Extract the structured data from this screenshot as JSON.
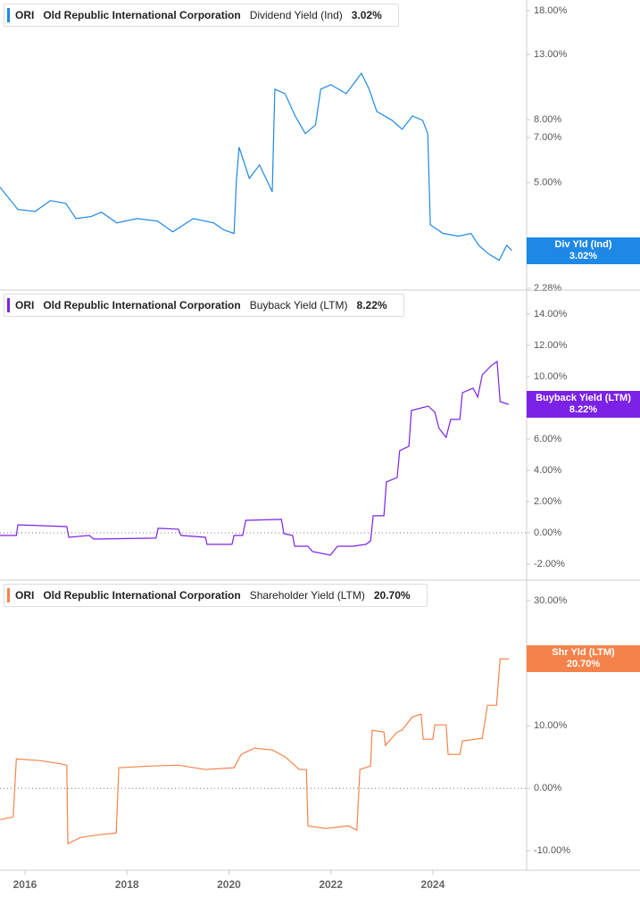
{
  "chart_data": [
    {
      "type": "line",
      "ticker": "ORI",
      "company": "Old Republic International Corporation",
      "current": "3.02%",
      "badge": "Div Yld (Ind)",
      "log": true,
      "zero_line": false,
      "xlim": [
        2015.51,
        2025.84
      ],
      "ylim": [
        2.25,
        19.5
      ],
      "yticks": [
        {
          "value": 18,
          "label": "18.00%"
        },
        {
          "value": 13,
          "label": "13.00%"
        },
        {
          "value": 8,
          "label": "8.00%"
        },
        {
          "value": 7,
          "label": "7.00%"
        },
        {
          "value": 5,
          "label": "5.00%"
        },
        {
          "value": 2.28,
          "label": "2.28%"
        }
      ],
      "x": [
        2015.51,
        2015.86,
        2016.2,
        2016.5,
        2016.8,
        2017.0,
        2017.3,
        2017.5,
        2017.8,
        2018.2,
        2018.6,
        2018.9,
        2019.3,
        2019.7,
        2019.9,
        2020.1,
        2020.15,
        2020.2,
        2020.4,
        2020.6,
        2020.85,
        2020.9,
        2021.1,
        2021.3,
        2021.5,
        2021.7,
        2021.8,
        2022.0,
        2022.3,
        2022.5,
        2022.6,
        2022.75,
        2022.9,
        2023.2,
        2023.4,
        2023.6,
        2023.8,
        2023.9,
        2023.95,
        2024.2,
        2024.5,
        2024.75,
        2024.9,
        2025.1,
        2025.3,
        2025.45,
        2025.55
      ],
      "series": [
        {
          "name": "Dividend Yield (Ind)",
          "color": "#1e88e5",
          "values": [
            4.84,
            4.1,
            4.04,
            4.38,
            4.29,
            3.83,
            3.89,
            4.02,
            3.71,
            3.83,
            3.76,
            3.47,
            3.83,
            3.71,
            3.52,
            3.43,
            5.17,
            6.52,
            5.17,
            5.71,
            4.68,
            10.04,
            9.71,
            8.22,
            7.21,
            7.7,
            10.04,
            10.38,
            9.71,
            10.73,
            11.31,
            10.04,
            8.51,
            7.96,
            7.45,
            8.22,
            7.96,
            7.21,
            3.66,
            3.43,
            3.36,
            3.43,
            3.14,
            2.94,
            2.81,
            3.14,
            3.02
          ]
        }
      ]
    },
    {
      "type": "line",
      "ticker": "ORI",
      "company": "Old Republic International Corporation",
      "current": "8.22%",
      "badge": "Buyback Yield (LTM)",
      "log": false,
      "zero_line": true,
      "xlim": [
        2015.51,
        2025.84
      ],
      "ylim": [
        -3.03,
        15.54
      ],
      "yticks": [
        {
          "value": 14,
          "label": "14.00%"
        },
        {
          "value": 12,
          "label": "12.00%"
        },
        {
          "value": 10,
          "label": "10.00%"
        },
        {
          "value": 6,
          "label": "6.00%"
        },
        {
          "value": 4,
          "label": "4.00%"
        },
        {
          "value": 2,
          "label": "2.00%"
        },
        {
          "value": 0,
          "label": "0.00%"
        },
        {
          "value": -2,
          "label": "-2.00%"
        }
      ],
      "x": [
        2015.51,
        2015.83,
        2015.86,
        2016.82,
        2016.86,
        2017.26,
        2017.35,
        2018.57,
        2018.61,
        2019.01,
        2019.06,
        2019.54,
        2019.57,
        2020.06,
        2020.1,
        2020.27,
        2020.33,
        2021.03,
        2021.08,
        2021.25,
        2021.29,
        2021.55,
        2021.64,
        2021.99,
        2022.13,
        2022.43,
        2022.69,
        2022.78,
        2022.83,
        2023.04,
        2023.09,
        2023.3,
        2023.35,
        2023.53,
        2023.58,
        2023.91,
        2024.04,
        2024.12,
        2024.26,
        2024.35,
        2024.53,
        2024.58,
        2024.79,
        2024.88,
        2024.97,
        2025.14,
        2025.26,
        2025.32,
        2025.49
      ],
      "series": [
        {
          "name": "Buyback Yield (LTM)",
          "color": "#7b22e6",
          "values": [
            -0.17,
            -0.17,
            0.51,
            0.4,
            -0.29,
            -0.17,
            -0.4,
            -0.34,
            0.29,
            0.23,
            -0.17,
            -0.29,
            -0.74,
            -0.74,
            -0.17,
            -0.17,
            0.8,
            0.86,
            -0.06,
            -0.17,
            -0.86,
            -0.86,
            -1.2,
            -1.43,
            -0.86,
            -0.86,
            -0.74,
            -0.51,
            1.09,
            1.09,
            3.26,
            3.54,
            5.26,
            5.54,
            7.83,
            8.11,
            7.71,
            6.69,
            6.11,
            7.26,
            7.26,
            8.97,
            9.26,
            8.69,
            10.11,
            10.69,
            10.97,
            8.4,
            8.22
          ]
        }
      ]
    },
    {
      "type": "line",
      "ticker": "ORI",
      "company": "Old Republic International Corporation",
      "current": "20.70%",
      "badge": "Shr Yld (LTM)",
      "log": false,
      "zero_line": true,
      "xlim": [
        2015.51,
        2025.84
      ],
      "ylim": [
        -13.1,
        33.3
      ],
      "yticks": [
        {
          "value": 30,
          "label": "30.00%"
        },
        {
          "value": 10,
          "label": "10.00%"
        },
        {
          "value": 0,
          "label": "0.00%"
        },
        {
          "value": -10,
          "label": "-10.00%"
        }
      ],
      "xticks": [
        2016,
        2018,
        2020,
        2022,
        2024
      ],
      "x": [
        2015.51,
        2015.77,
        2015.83,
        2016.3,
        2016.74,
        2016.82,
        2016.84,
        2017.09,
        2017.44,
        2017.79,
        2017.84,
        2018.49,
        2019.01,
        2019.54,
        2020.1,
        2020.24,
        2020.5,
        2020.85,
        2021.11,
        2021.38,
        2021.52,
        2021.55,
        2021.9,
        2022.34,
        2022.51,
        2022.57,
        2022.78,
        2022.81,
        2023.04,
        2023.07,
        2023.3,
        2023.39,
        2023.6,
        2023.77,
        2023.81,
        2024.0,
        2024.04,
        2024.26,
        2024.3,
        2024.53,
        2024.58,
        2024.97,
        2025.07,
        2025.25,
        2025.32,
        2025.49
      ],
      "series": [
        {
          "name": "Shareholder Yield (LTM)",
          "color": "#f5824a",
          "values": [
            -5.0,
            -4.57,
            4.71,
            4.43,
            3.86,
            3.71,
            -8.86,
            -7.86,
            -7.43,
            -7.14,
            3.29,
            3.57,
            3.71,
            3.0,
            3.29,
            5.43,
            6.43,
            6.14,
            5.0,
            3.0,
            3.0,
            -6.0,
            -6.43,
            -6.0,
            -6.71,
            3.0,
            3.57,
            9.29,
            9.0,
            6.86,
            9.0,
            9.29,
            11.43,
            11.86,
            7.86,
            7.86,
            10.14,
            10.14,
            5.43,
            5.43,
            7.57,
            8.0,
            13.29,
            13.29,
            20.71,
            20.7
          ]
        }
      ]
    }
  ]
}
